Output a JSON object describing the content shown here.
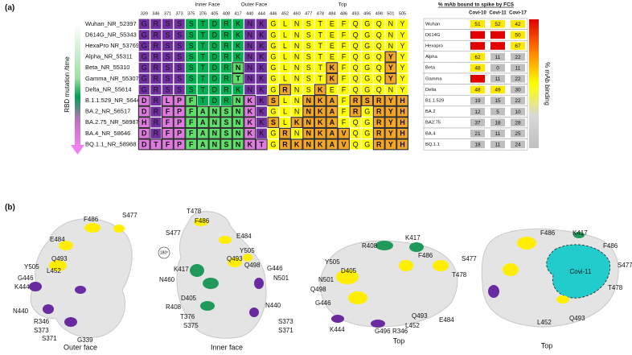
{
  "panel_a": {
    "label": "(a)",
    "axis_label": "RBD  mutation /time",
    "groups": [
      "Inner Face",
      "Outer Face",
      "Top"
    ],
    "positions": [
      "339",
      "346",
      "371",
      "373",
      "375",
      "376",
      "405",
      "408",
      "417",
      "440",
      "444",
      "446",
      "452",
      "460",
      "477",
      "478",
      "484",
      "486",
      "493",
      "496",
      "498",
      "501",
      "505"
    ],
    "variants": [
      {
        "name": "Wuhan_NR_52397",
        "residues": [
          "G",
          "R",
          "S",
          "S",
          "S",
          "T",
          "D",
          "R",
          "K",
          "N",
          "K",
          "G",
          "L",
          "N",
          "S",
          "T",
          "E",
          "F",
          "Q",
          "G",
          "Q",
          "N",
          "Y"
        ]
      },
      {
        "name": "D614G_NR_55343",
        "residues": [
          "G",
          "R",
          "S",
          "S",
          "S",
          "T",
          "D",
          "R",
          "K",
          "N",
          "K",
          "G",
          "L",
          "N",
          "S",
          "T",
          "E",
          "F",
          "Q",
          "G",
          "Q",
          "N",
          "Y"
        ]
      },
      {
        "name": "HexaPro NR_53769*",
        "residues": [
          "G",
          "R",
          "S",
          "S",
          "S",
          "T",
          "D",
          "R",
          "K",
          "N",
          "K",
          "G",
          "L",
          "N",
          "S",
          "T",
          "E",
          "F",
          "Q",
          "G",
          "Q",
          "N",
          "Y"
        ]
      },
      {
        "name": "Alpha_NR_55311",
        "residues": [
          "G",
          "R",
          "S",
          "S",
          "S",
          "T",
          "D",
          "R",
          "K",
          "N",
          "K",
          "G",
          "L",
          "N",
          "S",
          "T",
          "E",
          "F",
          "Q",
          "G",
          "Q",
          "Y",
          "Y"
        ]
      },
      {
        "name": "Beta_NR_55310",
        "residues": [
          "G",
          "R",
          "S",
          "S",
          "S",
          "T",
          "D",
          "R",
          "N",
          "N",
          "K",
          "G",
          "L",
          "N",
          "S",
          "T",
          "K",
          "F",
          "Q",
          "G",
          "Q",
          "Y",
          "Y"
        ]
      },
      {
        "name": "Gamma_NR_55307",
        "residues": [
          "G",
          "R",
          "S",
          "S",
          "S",
          "T",
          "D",
          "R",
          "T",
          "N",
          "K",
          "G",
          "L",
          "N",
          "S",
          "T",
          "K",
          "F",
          "Q",
          "G",
          "Q",
          "Y",
          "Y"
        ]
      },
      {
        "name": "Delta_NR_55614",
        "residues": [
          "G",
          "R",
          "S",
          "S",
          "S",
          "T",
          "D",
          "R",
          "K",
          "N",
          "K",
          "G",
          "R",
          "N",
          "S",
          "K",
          "E",
          "F",
          "Q",
          "G",
          "Q",
          "N",
          "Y"
        ]
      },
      {
        "name": "B.1.1.529_NR_56447",
        "residues": [
          "D",
          "R",
          "L",
          "P",
          "F",
          "T",
          "D",
          "R",
          "N",
          "K",
          "K",
          "S",
          "L",
          "N",
          "N",
          "K",
          "A",
          "F",
          "R",
          "S",
          "R",
          "Y",
          "H"
        ]
      },
      {
        "name": "BA.2_NR_56517",
        "residues": [
          "D",
          "R",
          "F",
          "P",
          "F",
          "A",
          "N",
          "S",
          "N",
          "K",
          "K",
          "G",
          "L",
          "N",
          "N",
          "K",
          "A",
          "F",
          "R",
          "G",
          "R",
          "Y",
          "H"
        ]
      },
      {
        "name": "BA.2.75_NR_58987",
        "residues": [
          "H",
          "R",
          "F",
          "P",
          "F",
          "A",
          "N",
          "S",
          "N",
          "K",
          "K",
          "S",
          "L",
          "K",
          "N",
          "K",
          "A",
          "F",
          "Q",
          "G",
          "R",
          "Y",
          "H"
        ]
      },
      {
        "name": "BA.4_NR_58646",
        "residues": [
          "D",
          "R",
          "F",
          "P",
          "F",
          "A",
          "N",
          "S",
          "N",
          "K",
          "K",
          "G",
          "R",
          "N",
          "N",
          "K",
          "A",
          "V",
          "Q",
          "G",
          "R",
          "Y",
          "H"
        ]
      },
      {
        "name": "BQ.1.1_NR_58988",
        "residues": [
          "D",
          "T",
          "F",
          "P",
          "F",
          "A",
          "N",
          "S",
          "N",
          "K",
          "T",
          "G",
          "R",
          "K",
          "N",
          "K",
          "A",
          "V",
          "Q",
          "G",
          "R",
          "Y",
          "H"
        ]
      }
    ],
    "table": {
      "title": "% mAb bound to spike by FCS",
      "columns": [
        "Covi-10",
        "Covi-11",
        "Covi-17"
      ],
      "rows": [
        {
          "name": "Wuhan",
          "values": [
            51,
            52,
            42
          ]
        },
        {
          "name": "D614G",
          "values": [
            null,
            null,
            50
          ]
        },
        {
          "name": "Hexapro",
          "values": [
            null,
            null,
            67
          ]
        },
        {
          "name": "Alpha",
          "values": [
            62,
            11,
            22
          ]
        },
        {
          "name": "Beta",
          "values": [
            48,
            0,
            11
          ]
        },
        {
          "name": "Gamma",
          "values": [
            null,
            11,
            22
          ]
        },
        {
          "name": "Delta",
          "values": [
            48,
            49,
            30
          ]
        },
        {
          "name": "B1.1.529",
          "values": [
            19,
            15,
            22
          ]
        },
        {
          "name": "BA.2",
          "values": [
            12,
            5,
            10
          ]
        },
        {
          "name": "BA2.75",
          "values": [
            37,
            18,
            28
          ]
        },
        {
          "name": "BA.4",
          "values": [
            21,
            11,
            25
          ]
        },
        {
          "name": "BQ.1.1",
          "values": [
            18,
            11,
            24
          ]
        }
      ]
    },
    "legend_label": "% mAb binding"
  },
  "panel_b": {
    "label": "(b)",
    "rotation": "180º",
    "antibody": "Covi-11",
    "views": [
      {
        "caption": "Outer face",
        "labels": [
          "F486",
          "S477",
          "E484",
          "Q493",
          "Y505",
          "L452",
          "G446",
          "K444",
          "N440",
          "R346",
          "S373",
          "S371",
          "G339"
        ]
      },
      {
        "caption": "Inner face",
        "labels": [
          "T478",
          "F486",
          "S477",
          "E484",
          "Y505",
          "Q493",
          "Q498",
          "G446",
          "K417",
          "N501",
          "N460",
          "D405",
          "R408",
          "N440",
          "T376",
          "S375",
          "S373",
          "S371"
        ]
      },
      {
        "caption": "Top",
        "labels": [
          "R408",
          "K417",
          "F486",
          "Y505",
          "D405",
          "S477",
          "N501",
          "T478",
          "Q498",
          "G446",
          "E484",
          "Q493",
          "L452",
          "G496",
          "R346",
          "K444"
        ]
      },
      {
        "caption": "Top",
        "labels": [
          "F486",
          "K417",
          "F486",
          "S477",
          "T478",
          "Q493",
          "L452"
        ]
      }
    ]
  }
}
